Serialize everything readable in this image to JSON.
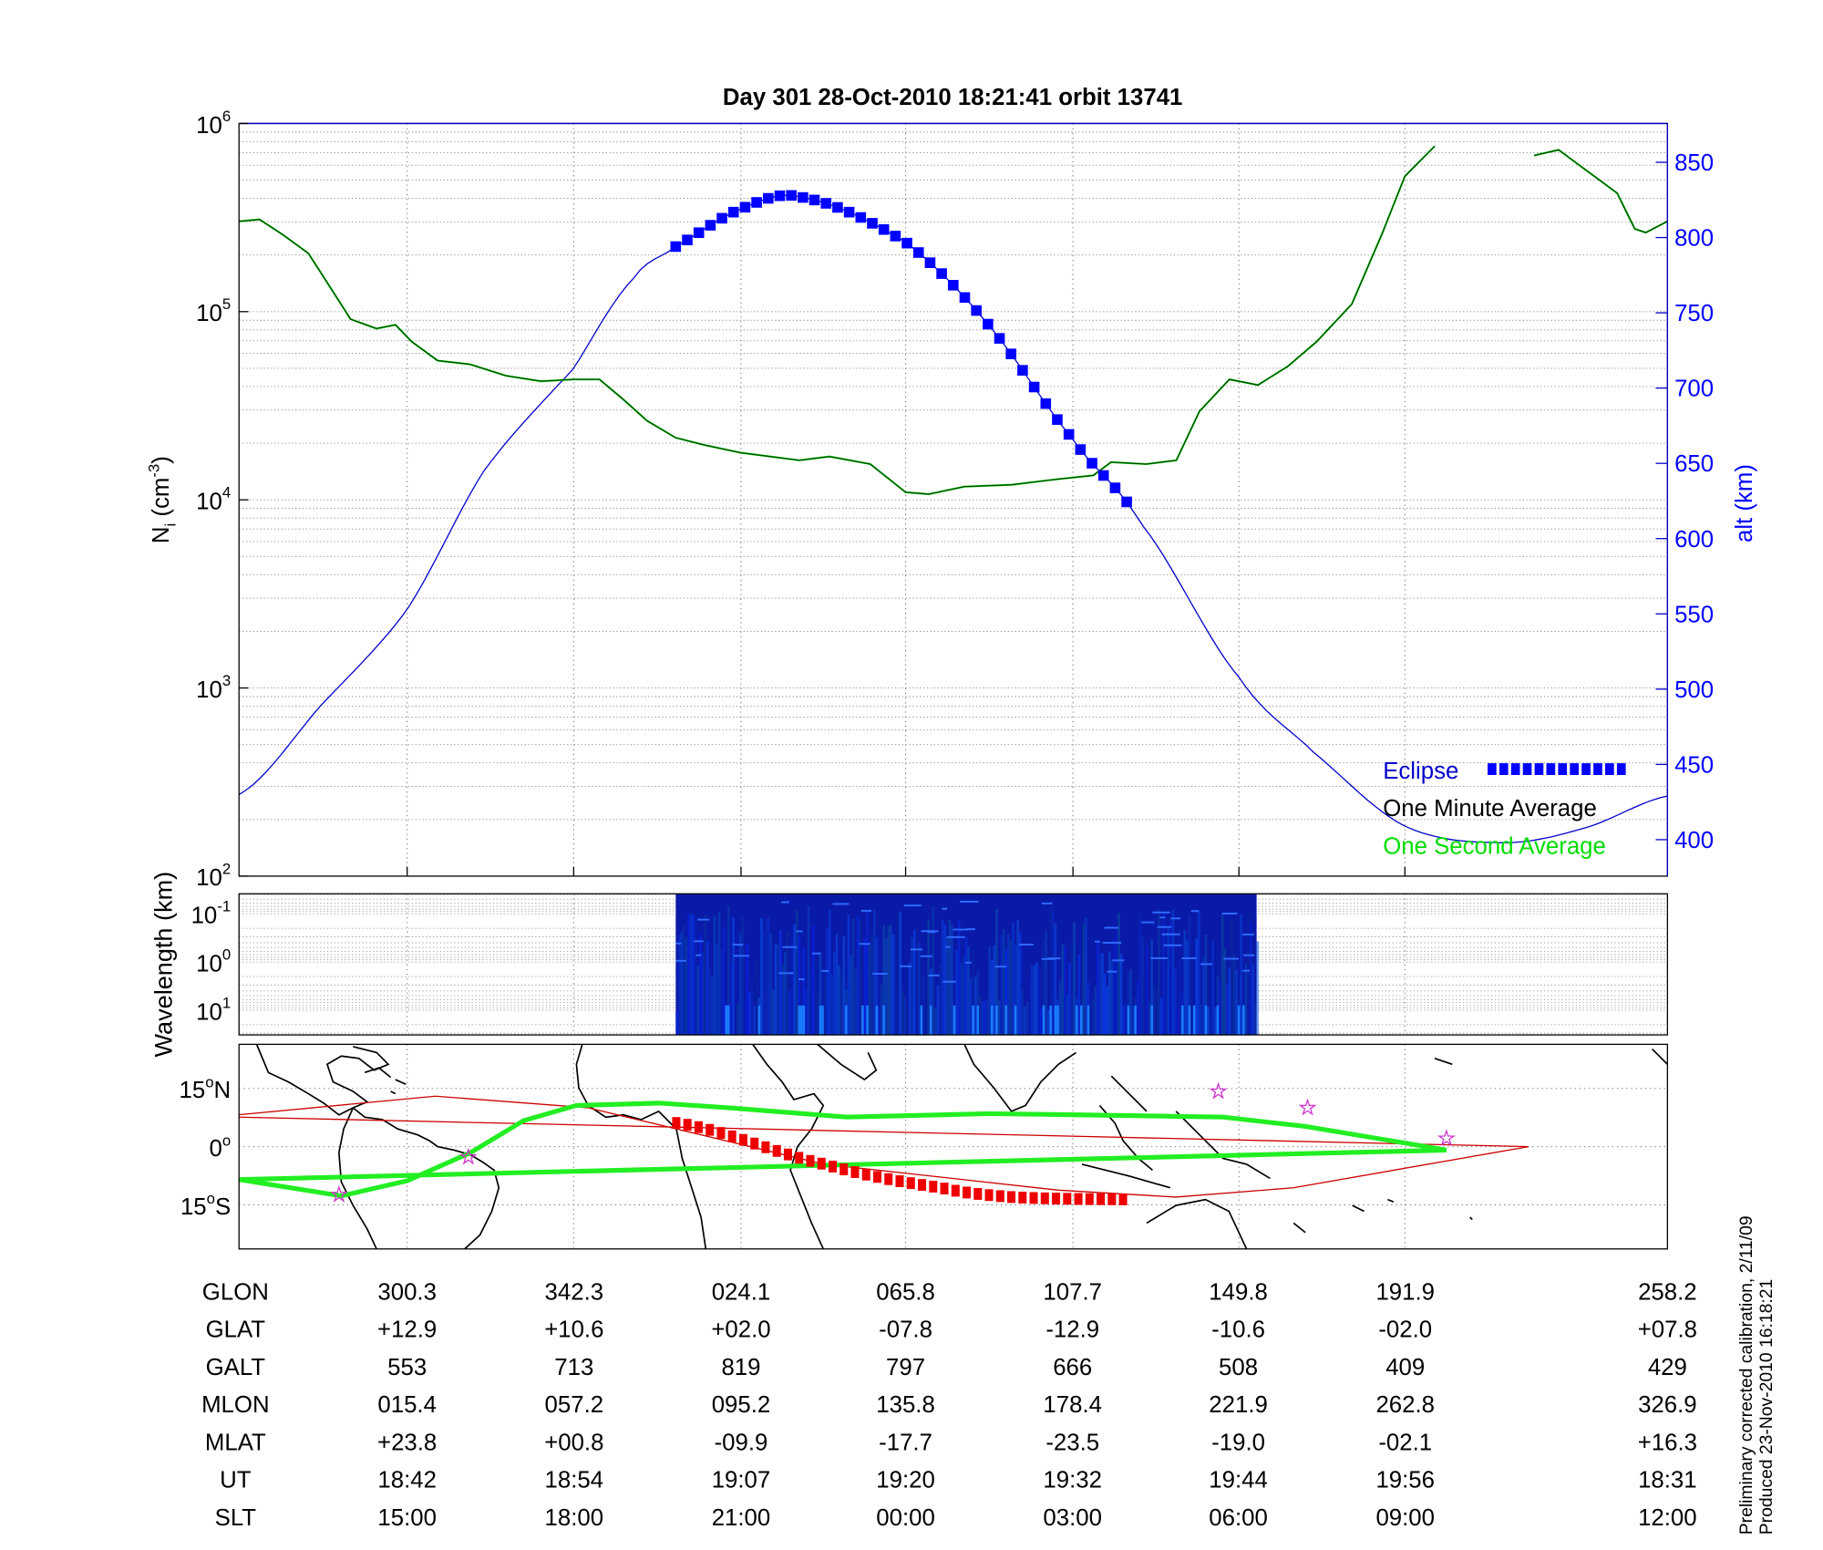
{
  "title": "Day 301  28-Oct-2010 18:21:41   orbit 13741",
  "side_note": [
    "Preliminary corrected calibration, 2/11/09",
    "Produced 23-Nov-2010 16:18:21"
  ],
  "colors": {
    "alt": "#0000cc",
    "eclipse": "#0000ff",
    "minute_avg": "#000000",
    "second_avg": "#00dd00",
    "track": "#22ee22",
    "mag_equator": "#cc0000",
    "eclipse_track": "#ee0000",
    "station": "#cc33cc"
  },
  "chart_data": [
    {
      "type": "line",
      "title": "Day 301  28-Oct-2010 18:21:41   orbit 13741",
      "xlabel": "",
      "xlim": [
        0,
        105
      ],
      "x_units": "minutes after 18:29.6 UT",
      "ylabel": "N_i (cm^-3)",
      "ylabel_parts": {
        "base": "N",
        "sub": "i",
        "unit_open": " (cm",
        "sup": "-3",
        "unit_close": ")"
      },
      "yscale": "log",
      "ylim": [
        100,
        1000000
      ],
      "y_ticks": [
        {
          "base": "10",
          "exp": "2"
        },
        {
          "base": "10",
          "exp": "3"
        },
        {
          "base": "10",
          "exp": "4"
        },
        {
          "base": "10",
          "exp": "5"
        },
        {
          "base": "10",
          "exp": "6"
        }
      ],
      "y2label": "alt (km)",
      "y2lim": [
        375,
        875
      ],
      "y2_ticks": [
        "400",
        "450",
        "500",
        "550",
        "600",
        "650",
        "700",
        "750",
        "800",
        "850"
      ],
      "x_ticks": [
        12.36,
        24.6,
        36.9,
        49.0,
        61.3,
        73.5,
        85.7
      ],
      "grid": true,
      "legend": {
        "placement": "bottom-right",
        "entries": [
          "Eclipse",
          "One Minute Average",
          "One Second Average"
        ]
      },
      "series": [
        {
          "name": "One Minute Average",
          "log10_Ni": true,
          "x": [
            0,
            1.5,
            3.2,
            5.1,
            6.7,
            8.2,
            10.1,
            11.5,
            12.7,
            14.6,
            17.0,
            19.6,
            22.2,
            24.6,
            26.5,
            28.3,
            30.0,
            32.1,
            34.3,
            36.9,
            41.2,
            43.4,
            46.4,
            49.0,
            50.7,
            53.3,
            56.8,
            60.2,
            62.8,
            64.1,
            66.7,
            68.9,
            70.6,
            72.8,
            74.9,
            77.1,
            79.2,
            81.8,
            84.0,
            85.7,
            87.9,
            null,
            95.2,
            97.0,
            98.3,
            101.3,
            102.6,
            103.4,
            105
          ],
          "y": [
            5.48,
            5.49,
            5.41,
            5.31,
            5.13,
            4.96,
            4.91,
            4.93,
            4.84,
            4.74,
            4.72,
            4.66,
            4.63,
            4.64,
            4.64,
            4.53,
            4.42,
            4.33,
            4.29,
            4.25,
            4.21,
            4.23,
            4.19,
            4.04,
            4.03,
            4.07,
            4.08,
            4.11,
            4.13,
            4.2,
            4.19,
            4.21,
            4.47,
            4.64,
            4.61,
            4.71,
            4.84,
            5.04,
            5.41,
            5.72,
            5.88,
            null,
            5.83,
            5.86,
            5.79,
            5.63,
            5.44,
            5.42,
            5.48
          ]
        },
        {
          "name": "alt (km)",
          "axis": "right",
          "x": [
            0,
            6,
            12.36,
            18,
            24.6,
            29,
            32.1,
            36.9,
            41.2,
            49.0,
            55,
            61.3,
            66.3,
            73.5,
            79,
            85.7,
            93,
            99,
            105
          ],
          "y": [
            430,
            489,
            553,
            645,
            713,
            773,
            794,
            819,
            827,
            797,
            743,
            666,
            610,
            508,
            458,
            409,
            398,
            408,
            429
          ]
        },
        {
          "name": "Eclipse",
          "x_range": [
            32.1,
            65.9
          ]
        }
      ]
    },
    {
      "type": "heatmap",
      "ylabel": "Wavelength (km)",
      "yscale": "log",
      "y_ticks": [
        {
          "base": "10",
          "exp": "-1"
        },
        {
          "base": "10",
          "exp": "0"
        },
        {
          "base": "10",
          "exp": "1"
        }
      ],
      "data_x_range": [
        32.1,
        74.8
      ],
      "colormap": "blue"
    },
    {
      "type": "map",
      "lon_range": [
        258.2,
        618.2
      ],
      "y_ticks": [
        {
          "label": "15",
          "suffix": "N",
          "lat": 15
        },
        {
          "label": "0",
          "suffix": "",
          "lat": 0
        },
        {
          "label": "15",
          "suffix": "S",
          "lat": -15
        }
      ],
      "track": {
        "lon": [
          258.2,
          284,
          300.6,
          316.6,
          329.9,
          343.2,
          4.0,
          21.8,
          51.4,
          87,
          108.3,
          146.2,
          167,
          192.1,
          202.5,
          258.2
        ],
        "lat": [
          -8.5,
          -12.7,
          -8.8,
          -1.5,
          6.7,
          10.6,
          11.2,
          10.0,
          7.6,
          8.5,
          8.2,
          7.6,
          5.2,
          0.9,
          -0.9,
          -8.5
        ]
      },
      "magnetic_equator": {
        "lon": [
          258.2,
          307.7,
          346.2,
          45.5,
          104.7,
          134.3,
          163.9,
          223.2,
          258.2
        ],
        "lat": [
          8.2,
          13.0,
          10.0,
          -4.5,
          -11.2,
          -13.0,
          -10.6,
          0,
          7.6
        ]
      },
      "eclipse_track": {
        "lon": [
          8.4,
          45.5,
          75.1,
          92.9,
          121.9
        ],
        "lat": [
          6.1,
          -4.5,
          -10.6,
          -13.0,
          -13.6
        ]
      },
      "stations": {
        "lon": [
          283.4,
          316.0,
          145.0,
          167.5,
          202.5
        ],
        "lat": [
          -12.4,
          -2.7,
          14.2,
          10.0,
          2.1
        ]
      }
    }
  ],
  "table": {
    "rows": [
      {
        "label": "GLON",
        "values": [
          "300.3",
          "342.3",
          "024.1",
          "065.8",
          "107.7",
          "149.8",
          "191.9",
          "258.2"
        ]
      },
      {
        "label": "GLAT",
        "values": [
          "+12.9",
          "+10.6",
          "+02.0",
          "-07.8",
          "-12.9",
          "-10.6",
          "-02.0",
          "+07.8"
        ]
      },
      {
        "label": "GALT",
        "values": [
          "553",
          "713",
          "819",
          "797",
          "666",
          "508",
          "409",
          "429"
        ]
      },
      {
        "label": "MLON",
        "values": [
          "015.4",
          "057.2",
          "095.2",
          "135.8",
          "178.4",
          "221.9",
          "262.8",
          "326.9"
        ]
      },
      {
        "label": "MLAT",
        "values": [
          "+23.8",
          "+00.8",
          "-09.9",
          "-17.7",
          "-23.5",
          "-19.0",
          "-02.1",
          "+16.3"
        ]
      },
      {
        "label": "UT",
        "values": [
          "18:42",
          "18:54",
          "19:07",
          "19:20",
          "19:32",
          "19:44",
          "19:56",
          "18:31"
        ]
      },
      {
        "label": "SLT",
        "values": [
          "15:00",
          "18:00",
          "21:00",
          "00:00",
          "03:00",
          "06:00",
          "09:00",
          "12:00"
        ]
      }
    ]
  }
}
